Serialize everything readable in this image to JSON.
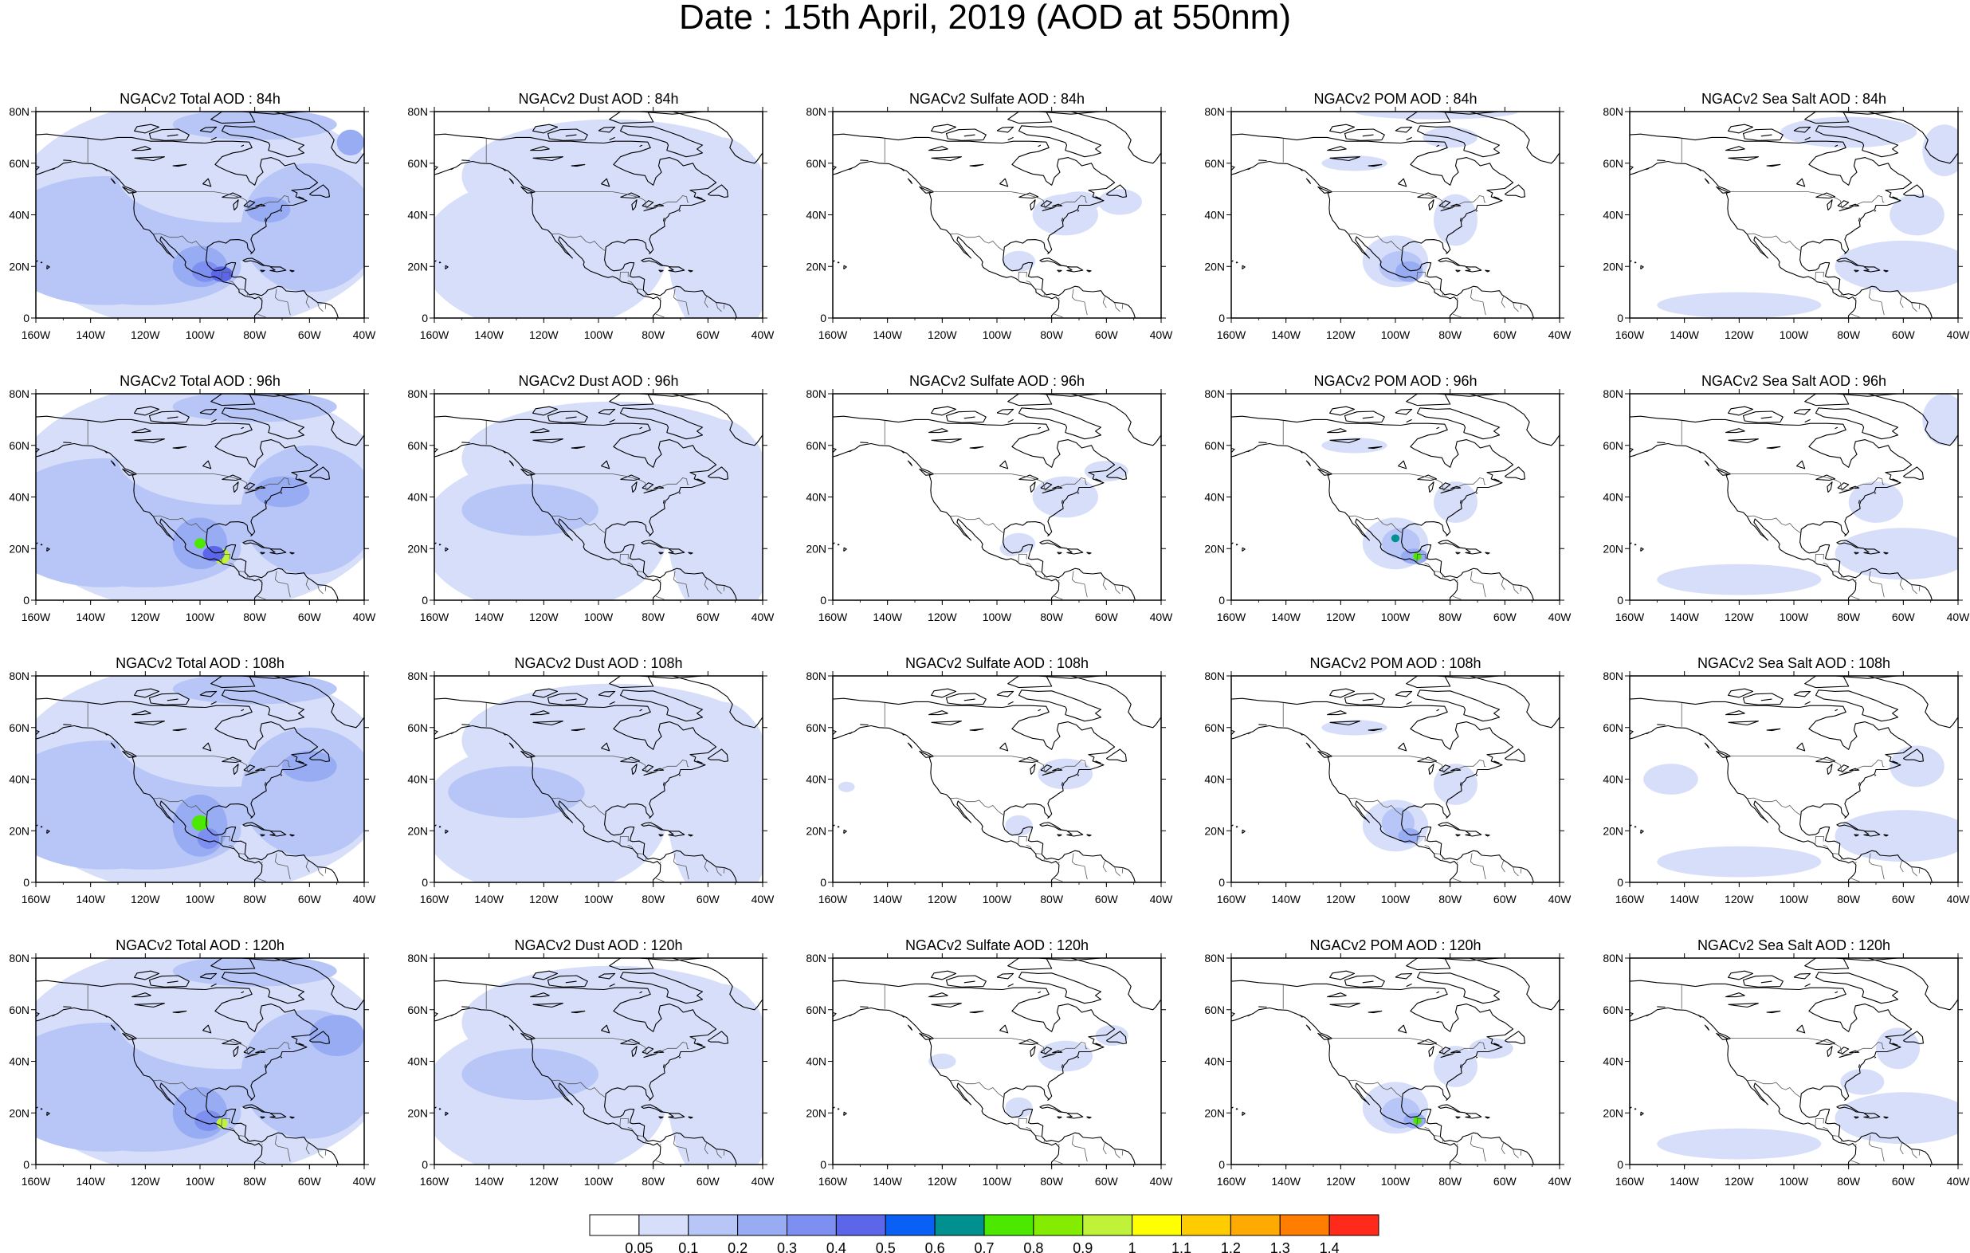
{
  "title": "Date : 15th April, 2019 (AOD at 550nm)",
  "map_extent": {
    "lon_min": -160,
    "lon_max": -40,
    "lat_min": 0,
    "lat_max": 80
  },
  "lon_ticks": [
    "160W",
    "140W",
    "120W",
    "100W",
    "80W",
    "60W",
    "40W"
  ],
  "lat_ticks": [
    "80N",
    "60N",
    "40N",
    "20N",
    "0"
  ],
  "panel_titles": [
    [
      "NGACv2 Total AOD : 84h",
      "NGACv2 Dust AOD : 84h",
      "NGACv2 Sulfate AOD : 84h",
      "NGACv2 POM AOD : 84h",
      "NGACv2 Sea Salt AOD : 84h"
    ],
    [
      "NGACv2 Total AOD : 96h",
      "NGACv2 Dust AOD : 96h",
      "NGACv2 Sulfate AOD : 96h",
      "NGACv2 POM AOD : 96h",
      "NGACv2 Sea Salt AOD : 96h"
    ],
    [
      "NGACv2 Total AOD : 108h",
      "NGACv2 Dust AOD : 108h",
      "NGACv2 Sulfate AOD : 108h",
      "NGACv2 POM AOD : 108h",
      "NGACv2 Sea Salt AOD : 108h"
    ],
    [
      "NGACv2 Total AOD : 120h",
      "NGACv2 Dust AOD : 120h",
      "NGACv2 Sulfate AOD : 120h",
      "NGACv2 POM AOD : 120h",
      "NGACv2 Sea Salt  AOD : 120h"
    ]
  ],
  "colorbar": {
    "colors": [
      "#ffffff",
      "#d6defa",
      "#b7c6f7",
      "#98acf3",
      "#7d8ff0",
      "#5b66e8",
      "#0a5ff5",
      "#00908f",
      "#4ce800",
      "#84ec00",
      "#c0f23a",
      "#ffff00",
      "#ffcc00",
      "#ffaa00",
      "#ff7d00",
      "#ff2a1a"
    ],
    "labels": [
      "0.05",
      "0.1",
      "0.2",
      "0.3",
      "0.4",
      "0.5",
      "0.6",
      "0.7",
      "0.8",
      "0.9",
      "1",
      "1.1",
      "1.2",
      "1.3",
      "1.4"
    ]
  },
  "colors": {
    "background": "#ffffff",
    "coastline": "#000000",
    "border": "#555555"
  }
}
